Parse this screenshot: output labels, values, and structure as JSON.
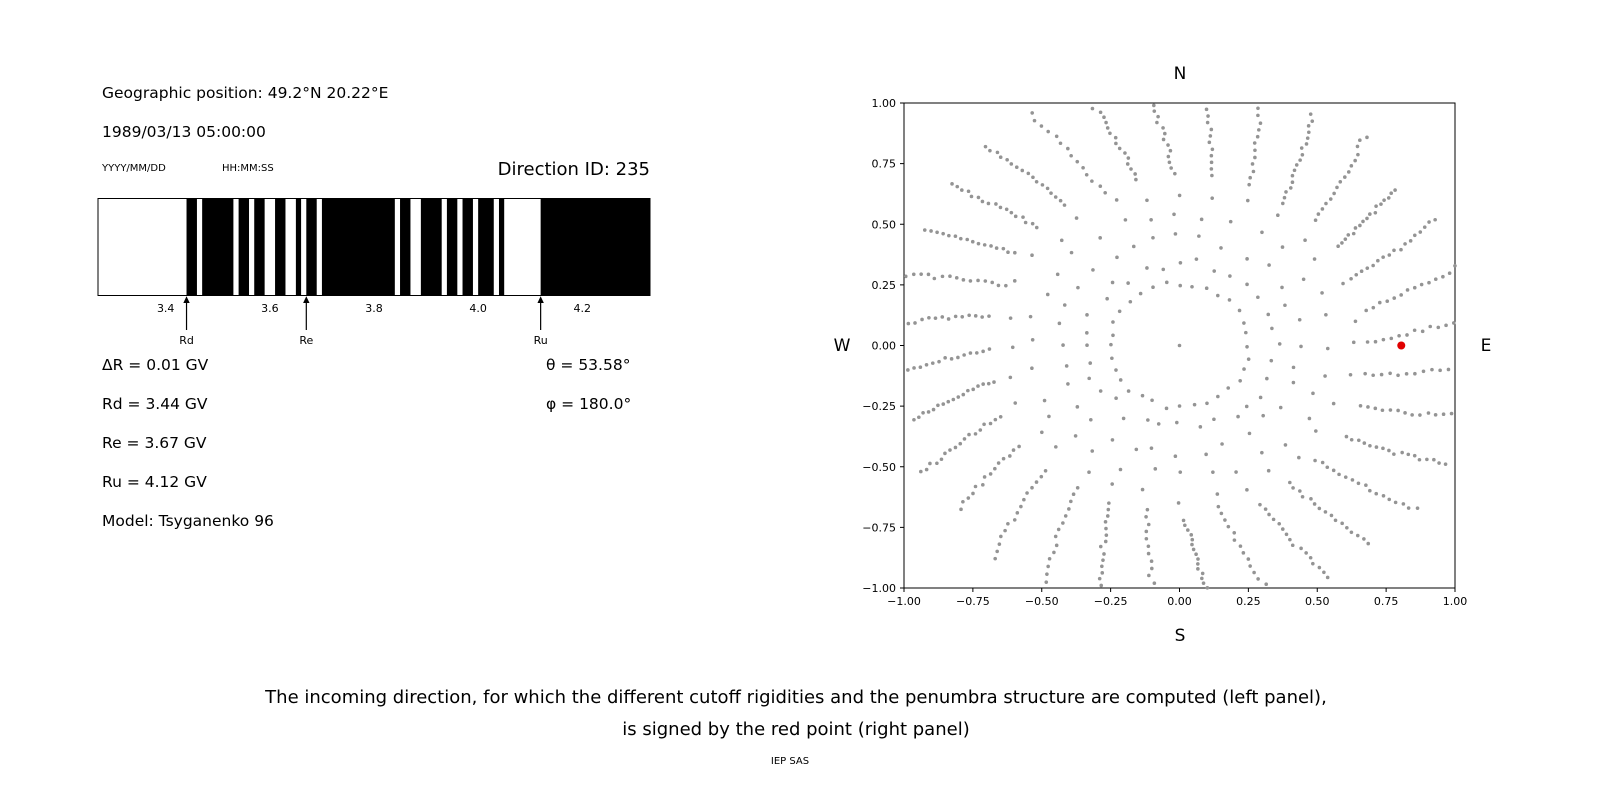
{
  "figure": {
    "caption_line1": "The incoming direction, for which the different cutoff rigidities and the penumbra structure are computed (left panel),",
    "caption_line2": "is signed by the red point (right panel)",
    "credit": "IEP SAS"
  },
  "left_panel": {
    "geographic_position": "Geographic position: 49.2°N 20.22°E",
    "datetime": "1989/03/13 05:00:00",
    "date_format_label": "YYYY/MM/DD",
    "time_format_label": "HH:MM:SS",
    "direction_id": "Direction ID: 235",
    "info_lines": [
      "ΔR = 0.01 GV",
      "Rd = 3.44 GV",
      "Re = 3.67 GV",
      "Ru = 4.12 GV",
      "Model: Tsyganenko 96"
    ],
    "theta": "θ = 53.58°",
    "phi": "φ = 180.0°"
  },
  "chart_data": [
    {
      "type": "bar",
      "name": "penumbra-structure",
      "description": "Cosmic-ray cutoff penumbra: black bands mark rigidity intervals (GV); white lead-in below Rd, solid black above Ru",
      "xlim": [
        3.27,
        4.33
      ],
      "xticks": [
        3.4,
        3.6,
        3.8,
        4.0,
        4.2
      ],
      "xtick_labels": [
        "3.4",
        "3.6",
        "3.8",
        "4.0",
        "4.2"
      ],
      "delta_r_gv": 0.01,
      "rd_gv": 3.44,
      "re_gv": 3.67,
      "ru_gv": 4.12,
      "markers": [
        {
          "label": "Rd",
          "gv": 3.44
        },
        {
          "label": "Re",
          "gv": 3.67
        },
        {
          "label": "Ru",
          "gv": 4.12
        }
      ],
      "black_segments_gv": [
        [
          3.44,
          3.46
        ],
        [
          3.47,
          3.53
        ],
        [
          3.54,
          3.56
        ],
        [
          3.57,
          3.59
        ],
        [
          3.61,
          3.63
        ],
        [
          3.65,
          3.66
        ],
        [
          3.67,
          3.69
        ],
        [
          3.7,
          3.84
        ],
        [
          3.85,
          3.87
        ],
        [
          3.89,
          3.93
        ],
        [
          3.94,
          3.96
        ],
        [
          3.97,
          3.99
        ],
        [
          4.0,
          4.03
        ],
        [
          4.04,
          4.05
        ],
        [
          4.12,
          4.33
        ]
      ],
      "bar_color": "#000000",
      "background": "#ffffff"
    },
    {
      "type": "scatter",
      "name": "incoming-direction-map",
      "description": "Grid of incoming directions (gray dots, 32 azimuthal spokes with inner ring and dense outer streaks); red point marks direction ID 235",
      "xlim": [
        -1,
        1
      ],
      "ylim": [
        -1,
        1
      ],
      "xticks": [
        -1,
        -0.75,
        -0.5,
        -0.25,
        0,
        0.25,
        0.5,
        0.75,
        1
      ],
      "xtick_labels": [
        "−1.00",
        "−0.75",
        "−0.50",
        "−0.25",
        "0.00",
        "0.25",
        "0.50",
        "0.75",
        "1.00"
      ],
      "yticks": [
        1,
        0.75,
        0.5,
        0.25,
        0,
        -0.25,
        -0.5,
        -0.75,
        -1
      ],
      "ytick_labels": [
        "1.00",
        "0.75",
        "0.50",
        "0.25",
        "0.00",
        "−0.25",
        "−0.50",
        "−0.75",
        "−1.00"
      ],
      "compass": {
        "top": "N",
        "bottom": "S",
        "left": "W",
        "right": "E"
      },
      "grid": false,
      "dot_color": "#949494",
      "red_point": {
        "x": 0.805,
        "y": 0.0,
        "color": "#e00000"
      },
      "generator": {
        "seed": 7,
        "spokes": 32,
        "ring_radius": 0.255,
        "mid_radii": [
          0.34,
          0.44,
          0.54,
          0.63
        ],
        "dense_count": 14,
        "dense_r_start": 0.7,
        "dense_r_end": 1.06,
        "curl": 0.25,
        "center_dot": true
      }
    }
  ]
}
